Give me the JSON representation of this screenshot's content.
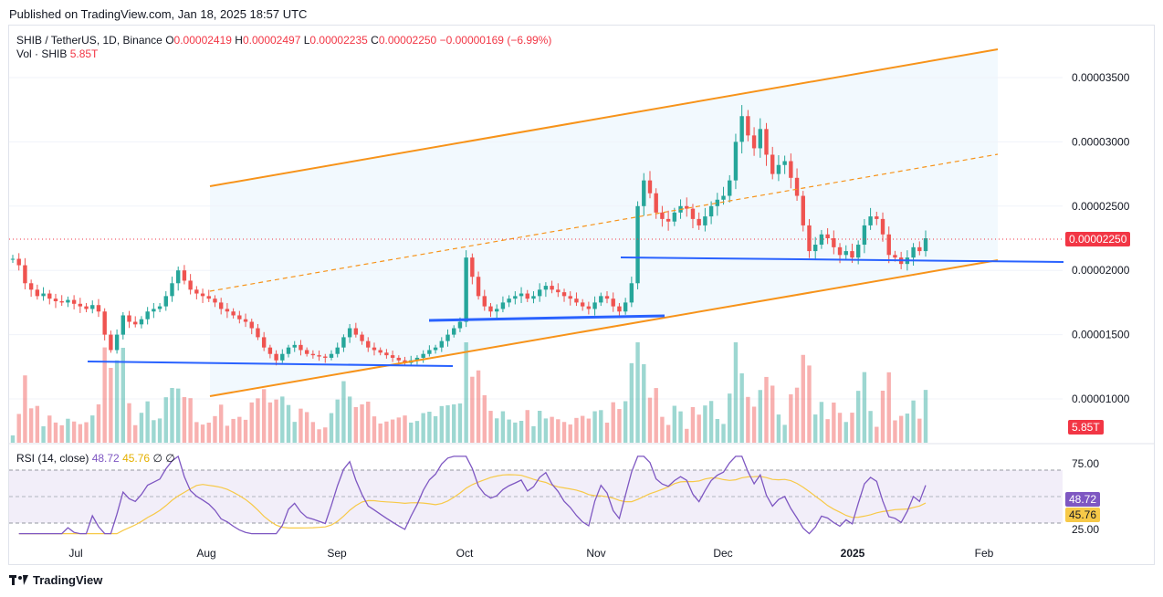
{
  "header": {
    "published": "Published on TradingView.com, Jan 18, 2025 18:57 UTC"
  },
  "legend": {
    "symbol": "SHIB / TetherUS, 1D, Binance",
    "o_label": "O",
    "o": "0.00002419",
    "h_label": "H",
    "h": "0.00002497",
    "l_label": "L",
    "l": "0.00002235",
    "c_label": "C",
    "c": "0.00002250",
    "change": "−0.00000169 (−6.99%)"
  },
  "volume": {
    "label": "Vol · SHIB",
    "value": "5.85T"
  },
  "rsi": {
    "label": "RSI (14, close)",
    "value": "48.72",
    "ma": "45.76",
    "extra": "∅ ∅"
  },
  "last_price_tag": "0.00002250",
  "volume_tag": "5.85T",
  "rsi_tag": "48.72",
  "rsi_ma_tag": "45.76",
  "footer": {
    "brand": "TradingView"
  },
  "colors": {
    "up": "#26a69a",
    "down": "#ef5350",
    "channel": "#f7931a",
    "support": "#2962ff",
    "rsi": "#7e57c2",
    "rsi_ma": "#f7c948"
  },
  "chart_data": {
    "type": "candlestick",
    "y_ticks": [
      "0.00003500",
      "0.00003000",
      "0.00002500",
      "0.00002000",
      "0.00001500",
      "0.00001000"
    ],
    "y_tick_values": [
      3.5e-05,
      3e-05,
      2.5e-05,
      2e-05,
      1.5e-05,
      1e-05
    ],
    "x_ticks": [
      "Jul",
      "Aug",
      "Sep",
      "Oct",
      "Nov",
      "Dec",
      "2025",
      "Feb"
    ],
    "rsi_ticks": [
      "75.00",
      "25.00"
    ],
    "ohlc_series": [
      2.09e-05,
      2.04e-05,
      1.9e-05,
      1.85e-05,
      1.8e-05,
      1.82e-05,
      1.78e-05,
      1.76e-05,
      1.75e-05,
      1.77e-05,
      1.74e-05,
      1.72e-05,
      1.7e-05,
      1.73e-05,
      1.68e-05,
      1.5e-05,
      1.38e-05,
      1.5e-05,
      1.65e-05,
      1.6e-05,
      1.58e-05,
      1.62e-05,
      1.68e-05,
      1.7e-05,
      1.72e-05,
      1.8e-05,
      1.9e-05,
      2e-05,
      1.92e-05,
      1.85e-05,
      1.82e-05,
      1.8e-05,
      1.78e-05,
      1.75e-05,
      1.7e-05,
      1.68e-05,
      1.65e-05,
      1.62e-05,
      1.6e-05,
      1.55e-05,
      1.48e-05,
      1.4e-05,
      1.35e-05,
      1.3e-05,
      1.35e-05,
      1.4e-05,
      1.42e-05,
      1.38e-05,
      1.35e-05,
      1.34e-05,
      1.33e-05,
      1.32e-05,
      1.35e-05,
      1.4e-05,
      1.48e-05,
      1.55e-05,
      1.5e-05,
      1.45e-05,
      1.4e-05,
      1.38e-05,
      1.36e-05,
      1.34e-05,
      1.32e-05,
      1.3e-05,
      1.28e-05,
      1.3e-05,
      1.32e-05,
      1.35e-05,
      1.38e-05,
      1.4e-05,
      1.45e-05,
      1.5e-05,
      1.55e-05,
      1.6e-05,
      2.1e-05,
      1.95e-05,
      1.8e-05,
      1.72e-05,
      1.68e-05,
      1.7e-05,
      1.75e-05,
      1.78e-05,
      1.8e-05,
      1.82e-05,
      1.78e-05,
      1.8e-05,
      1.85e-05,
      1.88e-05,
      1.85e-05,
      1.83e-05,
      1.8e-05,
      1.78e-05,
      1.75e-05,
      1.72e-05,
      1.7e-05,
      1.75e-05,
      1.8e-05,
      1.78e-05,
      1.72e-05,
      1.68e-05,
      1.75e-05,
      1.9e-05,
      2.5e-05,
      2.7e-05,
      2.6e-05,
      2.45e-05,
      2.4e-05,
      2.38e-05,
      2.45e-05,
      2.5e-05,
      2.48e-05,
      2.4e-05,
      2.35e-05,
      2.42e-05,
      2.5e-05,
      2.55e-05,
      2.58e-05,
      2.7e-05,
      3e-05,
      3.2e-05,
      3.05e-05,
      2.95e-05,
      3.1e-05,
      2.9e-05,
      2.75e-05,
      2.82e-05,
      2.85e-05,
      2.72e-05,
      2.58e-05,
      2.35e-05,
      2.15e-05,
      2.2e-05,
      2.28e-05,
      2.25e-05,
      2.18e-05,
      2.12e-05,
      2.15e-05,
      2.1e-05,
      2.2e-05,
      2.35e-05,
      2.42e-05,
      2.4e-05,
      2.28e-05,
      2.12e-05,
      2.1e-05,
      2.05e-05,
      2.1e-05,
      2.18e-05,
      2.15e-05,
      2.25e-05
    ]
  }
}
